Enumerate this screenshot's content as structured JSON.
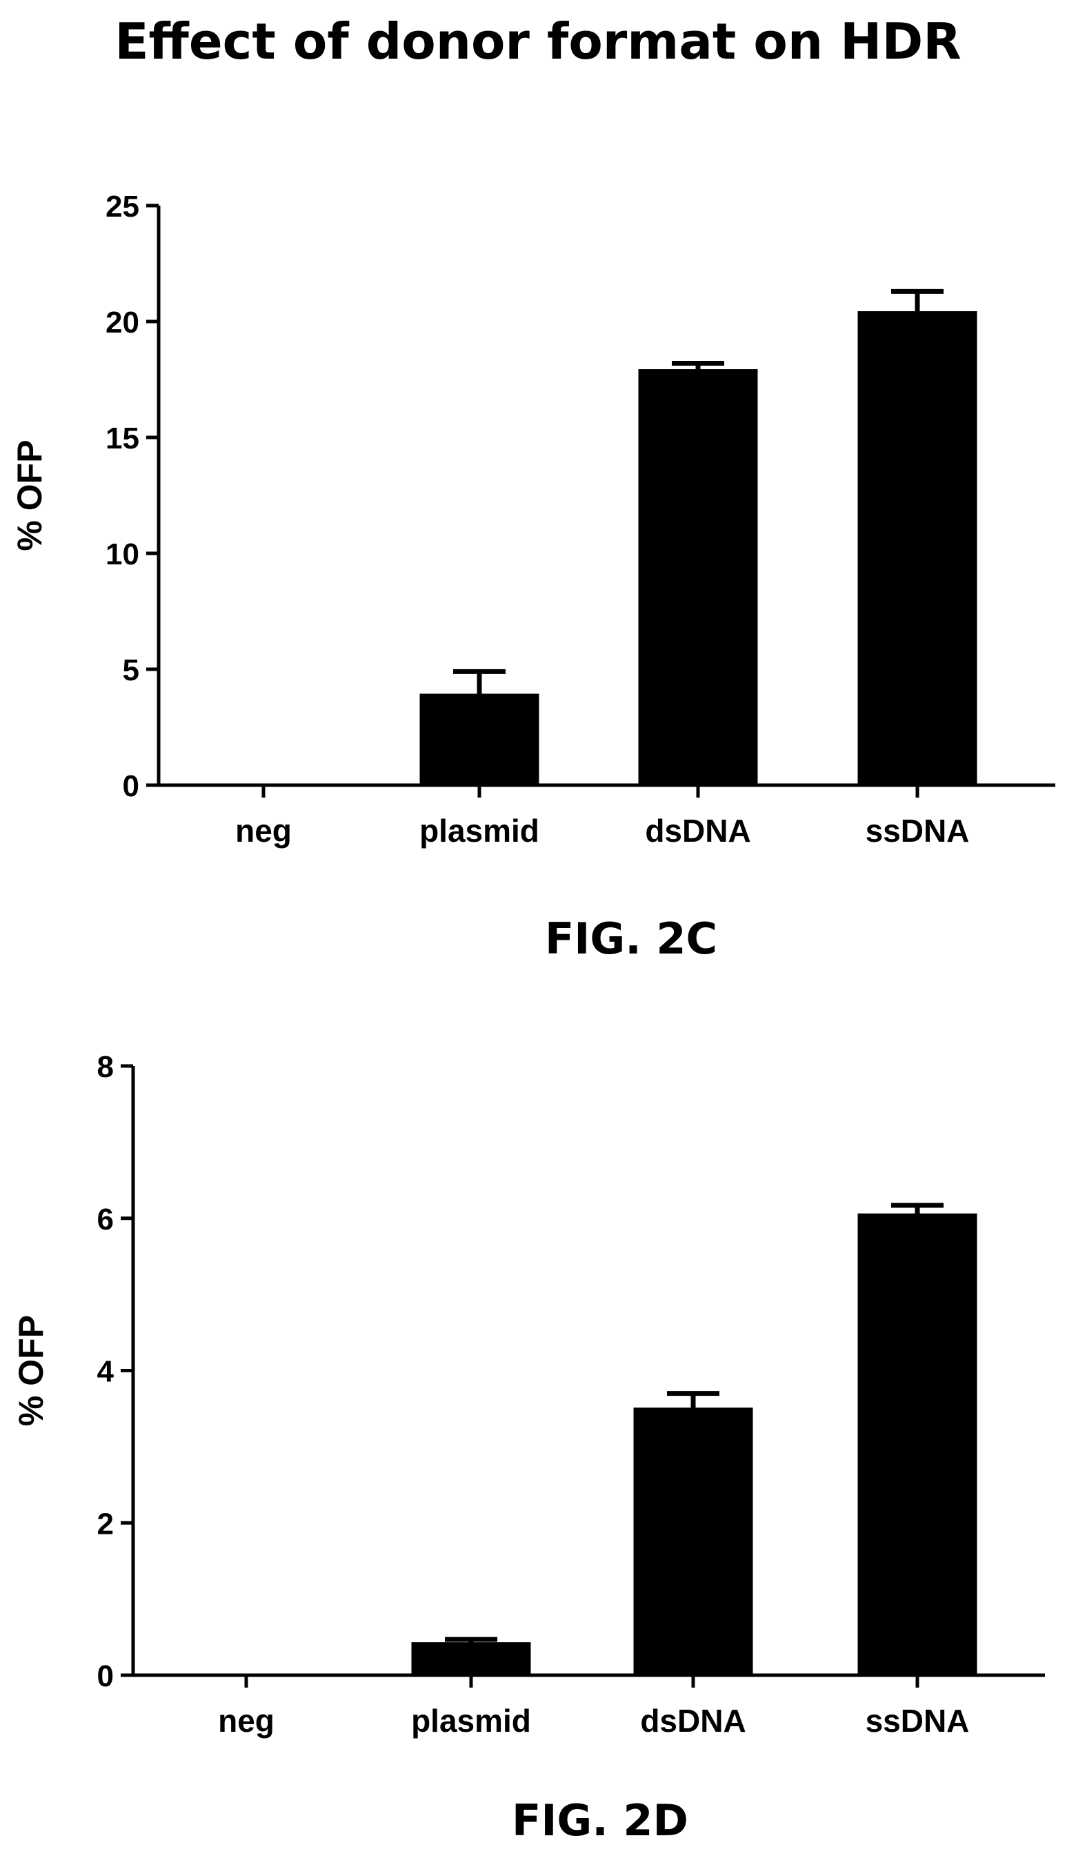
{
  "figure": {
    "title": "Effect of donor format on HDR"
  },
  "chart_data": [
    {
      "type": "bar",
      "caption": "FIG. 2C",
      "ylabel": "% OFP",
      "xlabel": "",
      "categories": [
        "neg",
        "plasmid",
        "dsDNA",
        "ssDNA"
      ],
      "values": [
        0,
        3.9,
        17.9,
        20.4
      ],
      "error": [
        0,
        1.0,
        0.3,
        0.9
      ],
      "ylim": [
        0,
        25
      ],
      "yticks": [
        0,
        5,
        10,
        15,
        20,
        25
      ],
      "color": "#000000",
      "grid": false,
      "legend": "none"
    },
    {
      "type": "bar",
      "caption": "FIG. 2D",
      "ylabel": "% OFP",
      "xlabel": "",
      "categories": [
        "neg",
        "plasmid",
        "dsDNA",
        "ssDNA"
      ],
      "values": [
        0,
        0.42,
        3.5,
        6.05
      ],
      "error": [
        0,
        0.05,
        0.2,
        0.12
      ],
      "ylim": [
        0,
        8
      ],
      "yticks": [
        0,
        2,
        4,
        6,
        8
      ],
      "color": "#000000",
      "grid": false,
      "legend": "none"
    }
  ]
}
